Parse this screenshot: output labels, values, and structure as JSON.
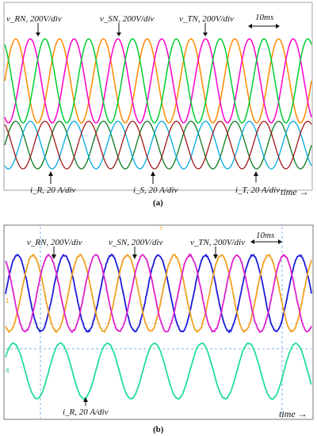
{
  "chart_data": [
    {
      "type": "line",
      "panel_caption": "(a)",
      "time_scale_label": "10ms",
      "x_axis_label": "time →",
      "voltage_labels": [
        "v_RN, 200V/div",
        "v_SN, 200V/div",
        "v_TN, 200V/div"
      ],
      "current_labels": [
        "i_R, 20 A/div",
        "i_S, 20 A/div",
        "i_T, 20 A/div"
      ],
      "x_divisions_ms": 10,
      "cycles_shown": 7,
      "series": [
        {
          "group": "voltage",
          "phase_deg": 0,
          "color": "#ff8a00"
        },
        {
          "group": "voltage",
          "phase_deg": -120,
          "color": "#ff00cc"
        },
        {
          "group": "voltage",
          "phase_deg": 120,
          "color": "#00cc33"
        },
        {
          "group": "current",
          "phase_deg": 0,
          "color": "#0a7a1e"
        },
        {
          "group": "current",
          "phase_deg": -120,
          "color": "#00aadd"
        },
        {
          "group": "current",
          "phase_deg": 120,
          "color": "#a01818"
        }
      ]
    },
    {
      "type": "line",
      "panel_caption": "(b)",
      "time_scale_label": "10ms",
      "x_axis_label": "time →",
      "voltage_labels": [
        "v_RN, 200V/div",
        "v_SN, 200V/div",
        "v_TN, 200V/div"
      ],
      "current_labels": [
        "i_R, 20 A/div"
      ],
      "cycles_shown": 6.5,
      "series": [
        {
          "group": "voltage",
          "phase_deg": 0,
          "color": "#1c1cd8"
        },
        {
          "group": "voltage",
          "phase_deg": -120,
          "color": "#f0a020"
        },
        {
          "group": "voltage",
          "phase_deg": 120,
          "color": "#dd22cc"
        },
        {
          "group": "current",
          "phase_deg": 30,
          "color": "#22dd99"
        }
      ]
    }
  ],
  "markers_b": {
    "ch1": "1",
    "ch2": "4",
    "trigger": "T"
  }
}
